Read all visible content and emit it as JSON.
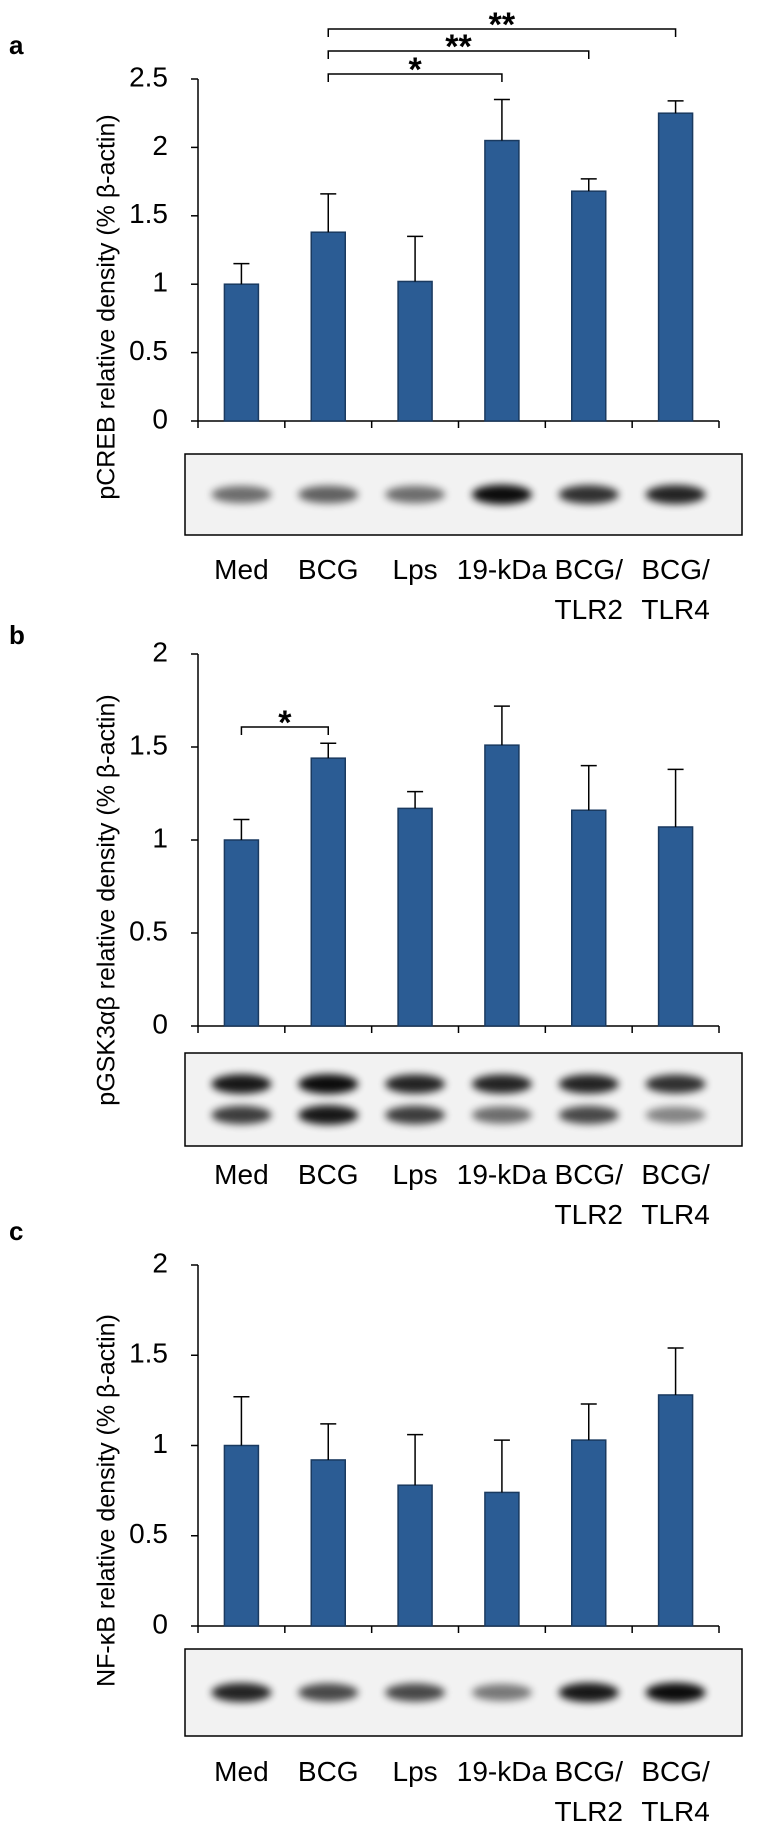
{
  "chart_data": [
    {
      "type": "bar",
      "label": "a",
      "ylabel": "pCREB relative density (% β-actin)",
      "categories": [
        "Med",
        "BCG",
        "Lps",
        "19-kDa",
        "BCG/\nTLR2",
        "BCG/\nTLR4"
      ],
      "values": [
        1.0,
        1.38,
        1.02,
        2.05,
        1.68,
        2.25
      ],
      "errors": [
        0.15,
        0.28,
        0.33,
        0.3,
        0.09,
        0.09
      ],
      "color": "#2b5c94",
      "ylim": [
        0,
        2.5
      ],
      "yticks": [
        0,
        0.5,
        1,
        1.5,
        2,
        2.5
      ],
      "annotations": [
        {
          "from": 1,
          "to": 3,
          "text": "*"
        },
        {
          "from": 1,
          "to": 4,
          "text": "**"
        },
        {
          "from": 1,
          "to": 5,
          "text": "**"
        }
      ]
    },
    {
      "type": "bar",
      "label": "b",
      "ylabel": "pGSK3αβ relative density (% β-actin)",
      "categories": [
        "Med",
        "BCG",
        "Lps",
        "19-kDa",
        "BCG/\nTLR2",
        "BCG/\nTLR4"
      ],
      "values": [
        1.0,
        1.44,
        1.17,
        1.51,
        1.16,
        1.07
      ],
      "errors": [
        0.11,
        0.08,
        0.09,
        0.21,
        0.24,
        0.31
      ],
      "color": "#2b5c94",
      "ylim": [
        0,
        2
      ],
      "yticks": [
        0,
        0.5,
        1,
        1.5,
        2
      ],
      "annotations": [
        {
          "from": 0,
          "to": 1,
          "text": "*"
        }
      ]
    },
    {
      "type": "bar",
      "label": "c",
      "ylabel": "NF-κB relative density (% β-actin)",
      "categories": [
        "Med",
        "BCG",
        "Lps",
        "19-kDa",
        "BCG/\nTLR2",
        "BCG/\nTLR4"
      ],
      "values": [
        1.0,
        0.92,
        0.78,
        0.74,
        1.03,
        1.28
      ],
      "errors": [
        0.27,
        0.2,
        0.28,
        0.29,
        0.2,
        0.26
      ],
      "color": "#2b5c94",
      "ylim": [
        0,
        2
      ],
      "yticks": [
        0,
        0.5,
        1,
        1.5,
        2
      ]
    }
  ]
}
